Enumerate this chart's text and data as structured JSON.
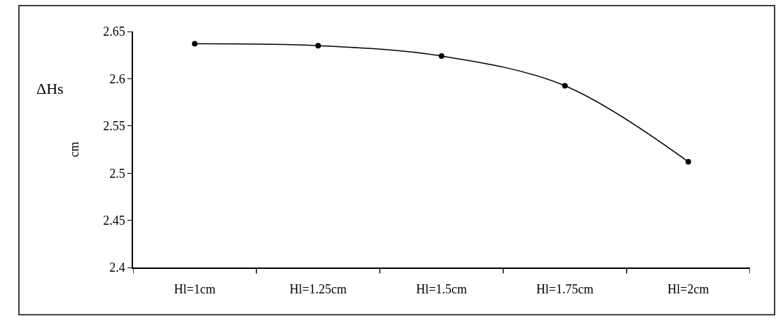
{
  "chart_data": {
    "type": "line",
    "categories": [
      "Hl=1cm",
      "Hl=1.25cm",
      "Hl=1.5cm",
      "Hl=1.75cm",
      "Hl=2cm"
    ],
    "series": [
      {
        "color": "#000000",
        "values": [
          2.637,
          2.635,
          2.624,
          2.5925,
          2.512
        ]
      }
    ],
    "ylabel": "cm",
    "annotations": [
      "ΔHs"
    ],
    "ylim": [
      2.4,
      2.65
    ],
    "yticks": [
      2.4,
      2.45,
      2.5,
      2.55,
      2.6,
      2.65
    ],
    "marker": "circle",
    "line_style": "solid"
  }
}
